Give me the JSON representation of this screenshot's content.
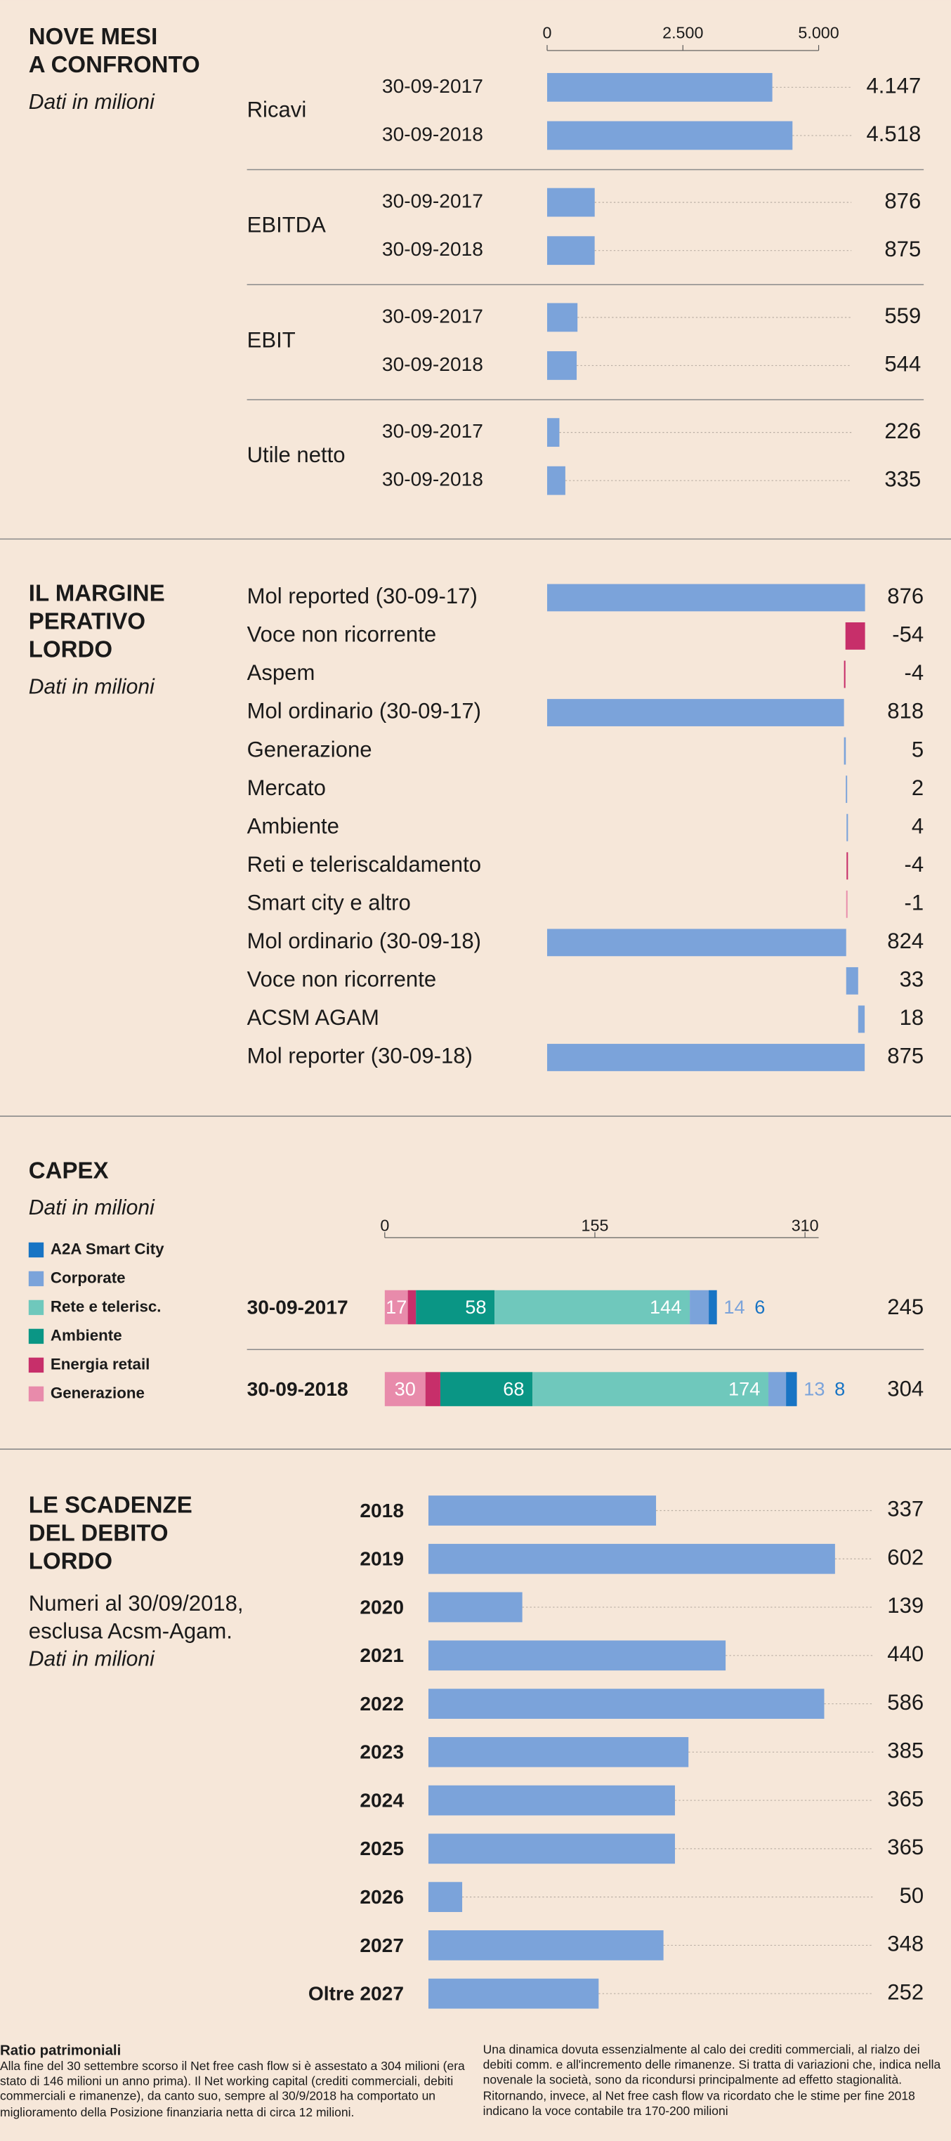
{
  "chart_data": [
    {
      "type": "grouped_bar",
      "title": [
        "NOVE MESI",
        "A CONFRONTO"
      ],
      "subtitle": "Dati in milioni",
      "xlim": [
        0,
        5000
      ],
      "xticks": [
        0,
        {
          "value": 2500,
          "label": "2.500"
        },
        {
          "value": 5000,
          "label": "5.000"
        }
      ],
      "color": "#7ba3da",
      "groups": [
        {
          "name": "Ricavi",
          "categories": [
            "30-09-2017",
            "30-09-2018"
          ],
          "values": [
            4147,
            4518
          ],
          "value_labels": [
            "4.147",
            "4.518"
          ]
        },
        {
          "name": "EBITDA",
          "categories": [
            "30-09-2017",
            "30-09-2018"
          ],
          "values": [
            876,
            875
          ]
        },
        {
          "name": "EBIT",
          "categories": [
            "30-09-2017",
            "30-09-2018"
          ],
          "values": [
            559,
            544
          ]
        },
        {
          "name": "Utile netto",
          "categories": [
            "30-09-2017",
            "30-09-2018"
          ],
          "values": [
            226,
            335
          ]
        }
      ]
    },
    {
      "type": "waterfall",
      "title": [
        "IL MARGINE",
        "PERATIVO",
        "LORDO"
      ],
      "subtitle": "Dati in milioni",
      "categories": [
        "Mol reported (30-09-17)",
        "Voce non ricorrente",
        "Aspem",
        "Mol ordinario (30-09-17)",
        "Generazione",
        "Mercato",
        "Ambiente",
        "Reti e teleriscaldamento",
        "Smart city e altro",
        "Mol ordinario (30-09-18)",
        "Voce non ricorrente",
        "ACSM AGAM",
        "Mol reporter (30-09-18)"
      ],
      "values": [
        876,
        -54,
        -4,
        818,
        5,
        2,
        4,
        -4,
        -1,
        824,
        33,
        18,
        875
      ],
      "totals": [
        true,
        false,
        false,
        true,
        false,
        false,
        false,
        false,
        false,
        true,
        false,
        false,
        true
      ],
      "colors": [
        "#7ba3da",
        "#c72f6a",
        "#c72f6a",
        "#7ba3da",
        "#7ba3da",
        "#7ba3da",
        "#7ba3da",
        "#c72f6a",
        "#e88bab",
        "#7ba3da",
        "#7ba3da",
        "#7ba3da",
        "#7ba3da"
      ]
    },
    {
      "type": "stacked_bar",
      "title": [
        "CAPEX"
      ],
      "subtitle": "Dati in milioni",
      "xlim": [
        0,
        310
      ],
      "xticks": [
        0,
        155,
        310
      ],
      "categories": [
        "30-09-2017",
        "30-09-2018"
      ],
      "totals": [
        245,
        304
      ],
      "series": [
        {
          "name": "Generazione",
          "color": "#e88bab",
          "values": [
            17,
            30
          ]
        },
        {
          "name": "Energia retail",
          "color": "#c72f6a",
          "values": [
            6,
            11
          ]
        },
        {
          "name": "Ambiente",
          "color": "#0a9685",
          "values": [
            58,
            68
          ]
        },
        {
          "name": "Rete e telerisc.",
          "color": "#6fc8bc",
          "values": [
            144,
            174
          ]
        },
        {
          "name": "Corporate",
          "color": "#7ba3da",
          "values": [
            14,
            13
          ]
        },
        {
          "name": "A2A Smart City",
          "color": "#1874c4",
          "values": [
            6,
            8
          ]
        }
      ]
    },
    {
      "type": "bar",
      "title": [
        "LE SCADENZE",
        "DEL DEBITO",
        "LORDO"
      ],
      "description": [
        "Numeri al 30/09/2018,",
        "esclusa Acsm-Agam."
      ],
      "subtitle": "Dati in milioni",
      "color": "#7ba3da",
      "categories": [
        "2018",
        "2019",
        "2020",
        "2021",
        "2022",
        "2023",
        "2024",
        "2025",
        "2026",
        "2027",
        "Oltre 2027"
      ],
      "values": [
        337,
        602,
        139,
        440,
        586,
        385,
        365,
        365,
        50,
        348,
        252
      ]
    }
  ],
  "footer": {
    "title": "Ratio patrimoniali",
    "columns": [
      "Alla fine del 30 settembre scorso il Net free cash flow si è assestato a 304 milioni (era stato di 146 milioni un anno prima). Il Net working capital (crediti commerciali, debiti commerciali e rimanenze), da canto suo, sempre al 30/9/2018 ha comportato un miglioramento della Posizione finanziaria netta di circa 12 milioni.",
      "Una dinamica dovuta essenzialmente al calo dei crediti commerciali, al rialzo dei debiti comm. e all'incremento delle rimanenze. Si tratta di variazioni che, indica nella novenale la società, sono da ricondursi principalmente ad effetto stagionalità.  Ritornando, invece, al Net free cash flow va ricordato che le stime per fine 2018 indicano la voce contabile tra 170-200 milioni"
    ]
  }
}
